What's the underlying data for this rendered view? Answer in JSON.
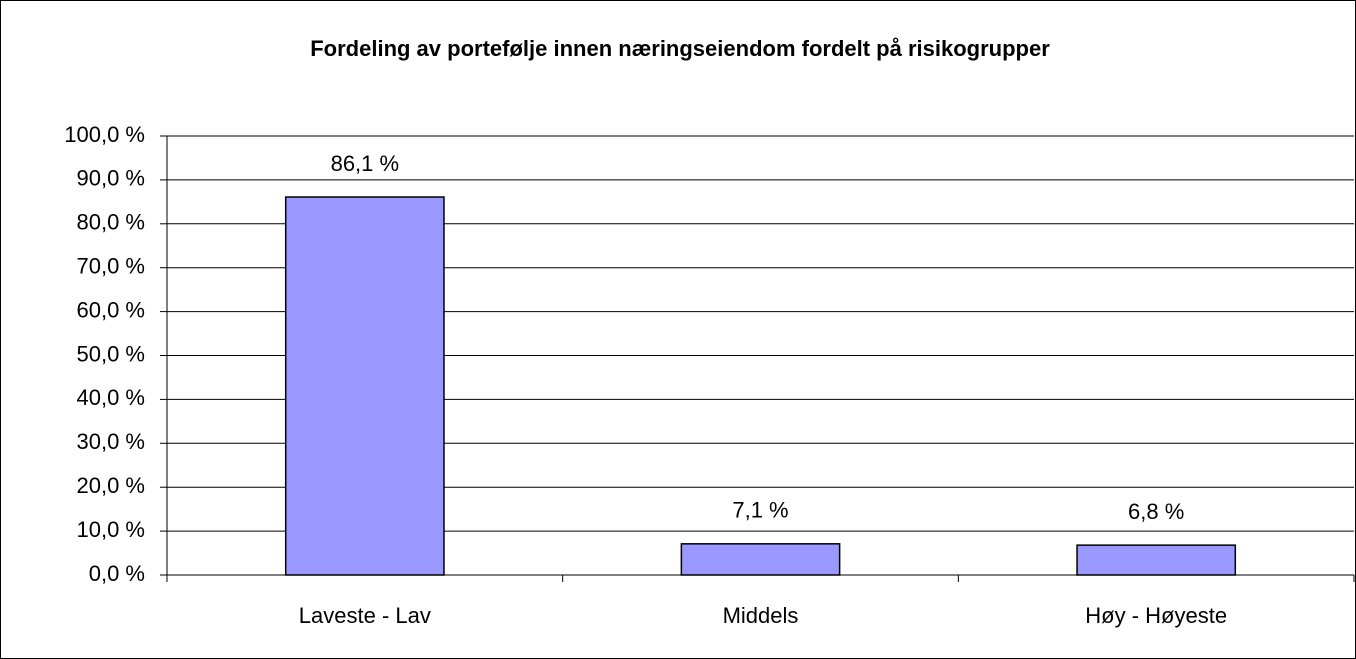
{
  "chart_data": {
    "type": "bar",
    "title": "Fordeling av portefølje innen næringseiendom fordelt på risikogrupper",
    "categories": [
      "Laveste - Lav",
      "Middels",
      "Høy - Høyeste"
    ],
    "values": [
      86.1,
      7.1,
      6.8
    ],
    "value_labels": [
      "86,1 %",
      "7,1 %",
      "6,8 %"
    ],
    "color": "#9999ff",
    "ylim": [
      0,
      100
    ],
    "yticks": [
      {
        "value": 0,
        "label": "0,0 %"
      },
      {
        "value": 10,
        "label": "10,0 %"
      },
      {
        "value": 20,
        "label": "20,0 %"
      },
      {
        "value": 30,
        "label": "30,0 %"
      },
      {
        "value": 40,
        "label": "40,0 %"
      },
      {
        "value": 50,
        "label": "50,0 %"
      },
      {
        "value": 60,
        "label": "60,0 %"
      },
      {
        "value": 70,
        "label": "70,0 %"
      },
      {
        "value": 80,
        "label": "80,0 %"
      },
      {
        "value": 90,
        "label": "90,0 %"
      },
      {
        "value": 100,
        "label": "100,0 %"
      }
    ],
    "grid": true
  }
}
